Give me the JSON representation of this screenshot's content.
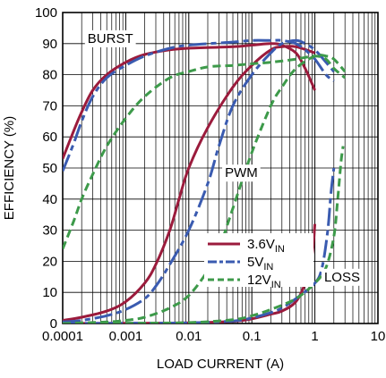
{
  "chart_data": {
    "type": "line",
    "xlabel": "LOAD CURRENT (A)",
    "ylabel": "EFFICIENCY (%)",
    "x_scale": "log",
    "xlim": [
      0.0001,
      10
    ],
    "ylim": [
      0,
      100
    ],
    "x_ticks": [
      {
        "value": 0.0001,
        "label": "0.0001"
      },
      {
        "value": 0.001,
        "label": "0.001"
      },
      {
        "value": 0.01,
        "label": "0.01"
      },
      {
        "value": 0.1,
        "label": "0.1"
      },
      {
        "value": 1,
        "label": "1"
      },
      {
        "value": 10,
        "label": "10"
      }
    ],
    "y_ticks": [
      {
        "value": 0,
        "label": "0"
      },
      {
        "value": 10,
        "label": "10"
      },
      {
        "value": 20,
        "label": "20"
      },
      {
        "value": 30,
        "label": "30"
      },
      {
        "value": 40,
        "label": "40"
      },
      {
        "value": 50,
        "label": "50"
      },
      {
        "value": 60,
        "label": "60"
      },
      {
        "value": 70,
        "label": "70"
      },
      {
        "value": 80,
        "label": "80"
      },
      {
        "value": 90,
        "label": "90"
      },
      {
        "value": 100,
        "label": "100"
      }
    ],
    "grid": true,
    "legend_position": "lower-center",
    "series": [
      {
        "name": "3.6VIN",
        "name_main": "3.6V",
        "name_sub": "IN",
        "color": "#9b1b3c",
        "dash": "solid",
        "curves": [
          {
            "mode": "BURST",
            "points": [
              [
                0.0001,
                53
              ],
              [
                0.00015,
                62
              ],
              [
                0.0002,
                68
              ],
              [
                0.0003,
                75
              ],
              [
                0.0005,
                80
              ],
              [
                0.001,
                84
              ],
              [
                0.002,
                86.5
              ],
              [
                0.005,
                88
              ],
              [
                0.01,
                88.5
              ],
              [
                0.05,
                89
              ],
              [
                0.1,
                89.5
              ],
              [
                0.2,
                90
              ],
              [
                0.3,
                89.5
              ],
              [
                0.5,
                87
              ],
              [
                0.7,
                82
              ],
              [
                1,
                75
              ]
            ]
          },
          {
            "mode": "PWM",
            "points": [
              [
                0.0001,
                1
              ],
              [
                0.0002,
                2
              ],
              [
                0.0005,
                4
              ],
              [
                0.001,
                7
              ],
              [
                0.002,
                13
              ],
              [
                0.003,
                19
              ],
              [
                0.005,
                30
              ],
              [
                0.007,
                40
              ],
              [
                0.01,
                50
              ],
              [
                0.02,
                63
              ],
              [
                0.05,
                76
              ],
              [
                0.1,
                83
              ],
              [
                0.2,
                88
              ],
              [
                0.3,
                89
              ],
              [
                0.5,
                89
              ],
              [
                1,
                87
              ]
            ]
          },
          {
            "mode": "LOSS",
            "points": [
              [
                0.0001,
                0
              ],
              [
                0.001,
                0.1
              ],
              [
                0.01,
                0.2
              ],
              [
                0.05,
                0.7
              ],
              [
                0.1,
                1.5
              ],
              [
                0.2,
                3
              ],
              [
                0.3,
                4
              ],
              [
                0.5,
                7
              ],
              [
                0.7,
                13
              ],
              [
                0.9,
                22
              ],
              [
                1,
                32
              ]
            ]
          }
        ]
      },
      {
        "name": "5VIN",
        "name_main": "5V",
        "name_sub": "IN",
        "color": "#3a5bb0",
        "dash": "long-dash",
        "curves": [
          {
            "mode": "BURST",
            "points": [
              [
                0.0001,
                49
              ],
              [
                0.00015,
                58
              ],
              [
                0.0002,
                65
              ],
              [
                0.0003,
                73
              ],
              [
                0.0005,
                79
              ],
              [
                0.001,
                83
              ],
              [
                0.002,
                86
              ],
              [
                0.005,
                88.5
              ],
              [
                0.01,
                89.5
              ],
              [
                0.05,
                90.5
              ],
              [
                0.1,
                91
              ],
              [
                0.2,
                91
              ],
              [
                0.3,
                91
              ],
              [
                0.5,
                90
              ],
              [
                0.7,
                88
              ],
              [
                1,
                85
              ],
              [
                1.5,
                80
              ],
              [
                2,
                78
              ]
            ]
          },
          {
            "mode": "PWM",
            "points": [
              [
                0.0001,
                0.5
              ],
              [
                0.0002,
                1
              ],
              [
                0.0005,
                2.5
              ],
              [
                0.001,
                4.5
              ],
              [
                0.002,
                8
              ],
              [
                0.003,
                12
              ],
              [
                0.005,
                19
              ],
              [
                0.01,
                30
              ],
              [
                0.02,
                45
              ],
              [
                0.03,
                57
              ],
              [
                0.05,
                70
              ],
              [
                0.1,
                80
              ],
              [
                0.2,
                87
              ],
              [
                0.3,
                90
              ],
              [
                0.5,
                91
              ],
              [
                0.7,
                90
              ],
              [
                1,
                88
              ],
              [
                1.5,
                84
              ],
              [
                2,
                81
              ]
            ]
          },
          {
            "mode": "LOSS",
            "points": [
              [
                0.0001,
                0
              ],
              [
                0.001,
                0.1
              ],
              [
                0.01,
                0.2
              ],
              [
                0.05,
                0.8
              ],
              [
                0.1,
                1.8
              ],
              [
                0.2,
                3.5
              ],
              [
                0.3,
                5
              ],
              [
                0.5,
                8
              ],
              [
                1,
                13
              ],
              [
                1.3,
                18
              ],
              [
                1.6,
                30
              ],
              [
                1.8,
                42
              ],
              [
                2,
                50
              ]
            ]
          }
        ]
      },
      {
        "name": "12VIN",
        "name_main": "12V",
        "name_sub": "IN",
        "color": "#3d9a4a",
        "dash": "dashed",
        "curves": [
          {
            "mode": "BURST",
            "points": [
              [
                0.0001,
                24
              ],
              [
                0.00015,
                33
              ],
              [
                0.0002,
                40
              ],
              [
                0.0003,
                48
              ],
              [
                0.0005,
                57
              ],
              [
                0.001,
                66
              ],
              [
                0.002,
                73
              ],
              [
                0.005,
                79
              ],
              [
                0.01,
                81
              ],
              [
                0.02,
                82.5
              ],
              [
                0.05,
                83
              ],
              [
                0.1,
                83.5
              ],
              [
                0.2,
                84
              ],
              [
                0.5,
                85
              ],
              [
                1,
                86
              ],
              [
                1.5,
                85
              ],
              [
                2,
                82
              ],
              [
                3,
                79
              ]
            ]
          },
          {
            "mode": "PWM",
            "points": [
              [
                0.0001,
                0
              ],
              [
                0.0005,
                0.5
              ],
              [
                0.001,
                1
              ],
              [
                0.002,
                2
              ],
              [
                0.005,
                5
              ],
              [
                0.01,
                9
              ],
              [
                0.02,
                17
              ],
              [
                0.03,
                24
              ],
              [
                0.05,
                37
              ],
              [
                0.1,
                55
              ],
              [
                0.2,
                70
              ],
              [
                0.3,
                76
              ],
              [
                0.5,
                82
              ],
              [
                1,
                86
              ],
              [
                1.5,
                86
              ],
              [
                2,
                85
              ],
              [
                3,
                81
              ]
            ]
          },
          {
            "mode": "LOSS",
            "points": [
              [
                0.0001,
                0
              ],
              [
                0.001,
                0.1
              ],
              [
                0.01,
                0.3
              ],
              [
                0.05,
                1.2
              ],
              [
                0.1,
                2.5
              ],
              [
                0.2,
                4.5
              ],
              [
                0.5,
                8
              ],
              [
                1,
                13
              ],
              [
                1.5,
                18
              ],
              [
                2,
                28
              ],
              [
                2.3,
                40
              ],
              [
                2.6,
                52
              ],
              [
                2.8,
                57
              ]
            ]
          }
        ]
      }
    ],
    "annotations": [
      {
        "text": "BURST",
        "x": 0.00057,
        "y": 91.7
      },
      {
        "text": "PWM",
        "x": 0.068,
        "y": 48.5
      },
      {
        "text": "LOSS",
        "x": 2.7,
        "y": 15
      }
    ]
  }
}
